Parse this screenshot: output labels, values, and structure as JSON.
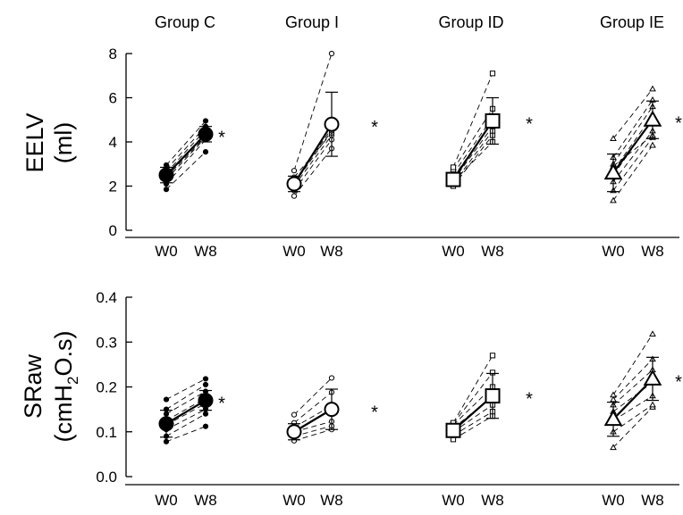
{
  "chart_data": {
    "type": "scatter",
    "groups": [
      "Group C",
      "Group I",
      "Group ID",
      "Group IE"
    ],
    "x_categories": [
      "W0",
      "W8"
    ],
    "significance_marker": "*",
    "panels": [
      {
        "id": "eelv",
        "ylabel_line1": "EELV",
        "ylabel_line2": "(ml)",
        "ylim": [
          0,
          8
        ],
        "yticks": [
          "0",
          "2",
          "4",
          "6",
          "8"
        ],
        "ytick_values": [
          0,
          2,
          4,
          6,
          8
        ],
        "series": [
          {
            "group": "Group C",
            "marker": "circle-filled",
            "mean": [
              2.5,
              4.35
            ],
            "err": [
              0.35,
              0.35
            ],
            "individuals": [
              [
                1.85,
                3.55
              ],
              [
                2.1,
                4.1
              ],
              [
                2.3,
                4.2
              ],
              [
                2.5,
                4.4
              ],
              [
                2.6,
                4.55
              ],
              [
                2.75,
                4.7
              ],
              [
                2.95,
                4.95
              ],
              [
                2.4,
                4.25
              ]
            ]
          },
          {
            "group": "Group I",
            "marker": "circle-open",
            "mean": [
              2.1,
              4.8
            ],
            "err": [
              0.35,
              1.45
            ],
            "individuals": [
              [
                1.55,
                3.7
              ],
              [
                1.8,
                4.1
              ],
              [
                2.0,
                4.3
              ],
              [
                2.2,
                4.6
              ],
              [
                2.4,
                4.4
              ],
              [
                2.7,
                8.0
              ],
              [
                2.1,
                4.5
              ]
            ]
          },
          {
            "group": "Group ID",
            "marker": "square-open",
            "mean": [
              2.3,
              4.95
            ],
            "err": [
              0.3,
              1.05
            ],
            "individuals": [
              [
                2.0,
                4.3
              ],
              [
                2.1,
                4.5
              ],
              [
                2.25,
                4.7
              ],
              [
                2.4,
                4.9
              ],
              [
                2.55,
                5.1
              ],
              [
                2.75,
                5.5
              ],
              [
                2.85,
                7.1
              ],
              [
                2.2,
                4.0
              ]
            ]
          },
          {
            "group": "Group IE",
            "marker": "triangle-open",
            "mean": [
              2.6,
              5.0
            ],
            "err": [
              0.85,
              0.85
            ],
            "individuals": [
              [
                1.35,
                3.85
              ],
              [
                1.8,
                4.2
              ],
              [
                2.2,
                4.5
              ],
              [
                2.5,
                5.0
              ],
              [
                2.7,
                5.2
              ],
              [
                3.0,
                5.6
              ],
              [
                3.3,
                5.9
              ],
              [
                4.15,
                6.4
              ],
              [
                2.9,
                4.3
              ]
            ]
          }
        ]
      },
      {
        "id": "sraw",
        "ylabel_line1": "SRaw",
        "ylabel_line2": "(cmH",
        "ylabel_sub": "2",
        "ylabel_line2b": "O.s)",
        "ylim": [
          0,
          0.4
        ],
        "yticks": [
          "0.0",
          "0.1",
          "0.2",
          "0.3",
          "0.4"
        ],
        "ytick_values": [
          0,
          0.1,
          0.2,
          0.3,
          0.4
        ],
        "series": [
          {
            "group": "Group C",
            "marker": "circle-filled",
            "mean": [
              0.118,
              0.17
            ],
            "err": [
              0.03,
              0.022
            ],
            "individuals": [
              [
                0.078,
                0.112
              ],
              [
                0.09,
                0.14
              ],
              [
                0.105,
                0.15
              ],
              [
                0.115,
                0.163
              ],
              [
                0.125,
                0.175
              ],
              [
                0.14,
                0.19
              ],
              [
                0.15,
                0.205
              ],
              [
                0.172,
                0.218
              ]
            ]
          },
          {
            "group": "Group I",
            "marker": "circle-open",
            "mean": [
              0.1,
              0.15
            ],
            "err": [
              0.018,
              0.045
            ],
            "individuals": [
              [
                0.08,
                0.105
              ],
              [
                0.09,
                0.113
              ],
              [
                0.1,
                0.123
              ],
              [
                0.11,
                0.158
              ],
              [
                0.12,
                0.188
              ],
              [
                0.138,
                0.22
              ]
            ]
          },
          {
            "group": "Group ID",
            "marker": "square-open",
            "mean": [
              0.103,
              0.18
            ],
            "err": [
              0.015,
              0.05
            ],
            "individuals": [
              [
                0.083,
                0.135
              ],
              [
                0.092,
                0.145
              ],
              [
                0.1,
                0.16
              ],
              [
                0.108,
                0.178
              ],
              [
                0.115,
                0.2
              ],
              [
                0.118,
                0.232
              ],
              [
                0.12,
                0.27
              ]
            ]
          },
          {
            "group": "Group IE",
            "marker": "triangle-open",
            "mean": [
              0.128,
              0.218
            ],
            "err": [
              0.038,
              0.048
            ],
            "individuals": [
              [
                0.065,
                0.155
              ],
              [
                0.1,
                0.16
              ],
              [
                0.125,
                0.18
              ],
              [
                0.145,
                0.21
              ],
              [
                0.16,
                0.238
              ],
              [
                0.172,
                0.262
              ],
              [
                0.182,
                0.318
              ]
            ]
          }
        ]
      }
    ]
  }
}
